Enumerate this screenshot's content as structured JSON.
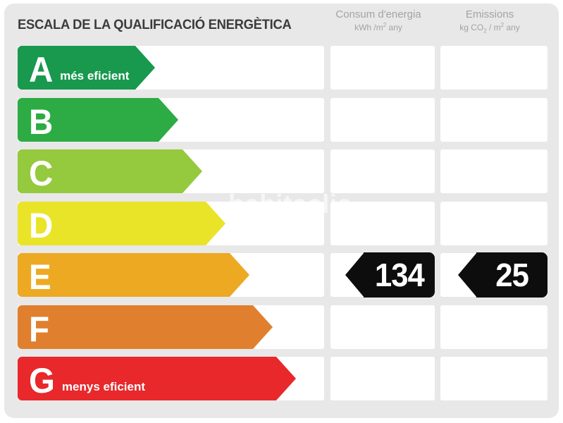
{
  "title": "ESCALA DE LA QUALIFICACIÓ ENERGÈTICA",
  "watermark": "habitaclia",
  "columns": {
    "consum": {
      "title": "Consum d'energia",
      "unit_pre": "kWh /m",
      "unit_sup": "2",
      "unit_post": " any"
    },
    "emissions": {
      "title": "Emissions",
      "unit_pre": "kg CO",
      "unit_sub": "2",
      "unit_mid": " / m",
      "unit_sup": "2",
      "unit_post": " any"
    }
  },
  "scale": {
    "rows": [
      {
        "letter": "A",
        "label": "més eficient",
        "color": "#18994e"
      },
      {
        "letter": "B",
        "label": "",
        "color": "#2dab44"
      },
      {
        "letter": "C",
        "label": "",
        "color": "#95c93e"
      },
      {
        "letter": "D",
        "label": "",
        "color": "#e9e428"
      },
      {
        "letter": "E",
        "label": "",
        "color": "#eda921"
      },
      {
        "letter": "F",
        "label": "",
        "color": "#e0802e"
      },
      {
        "letter": "G",
        "label": "menys eficient",
        "color": "#e8282b"
      }
    ]
  },
  "rating": {
    "letter": "E",
    "consum_value": "134",
    "emissions_value": "25",
    "badge_color": "#0d0d0d",
    "badge_text_color": "#ffffff"
  },
  "panel_background": "#e8e8e8",
  "chart_data": {
    "type": "bar",
    "title": "ESCALA DE LA QUALIFICACIÓ ENERGÈTICA",
    "categories": [
      "A",
      "B",
      "C",
      "D",
      "E",
      "F",
      "G"
    ],
    "category_labels": {
      "A": "més eficient",
      "G": "menys eficient"
    },
    "colors": [
      "#18994e",
      "#2dab44",
      "#95c93e",
      "#e9e428",
      "#eda921",
      "#e0802e",
      "#e8282b"
    ],
    "rated_category": "E",
    "series": [
      {
        "name": "Consum d'energia (kWh/m2 any)",
        "rating": "E",
        "value": 134
      },
      {
        "name": "Emissions (kg CO2/m2 any)",
        "rating": "E",
        "value": 25
      }
    ],
    "legend": false
  }
}
